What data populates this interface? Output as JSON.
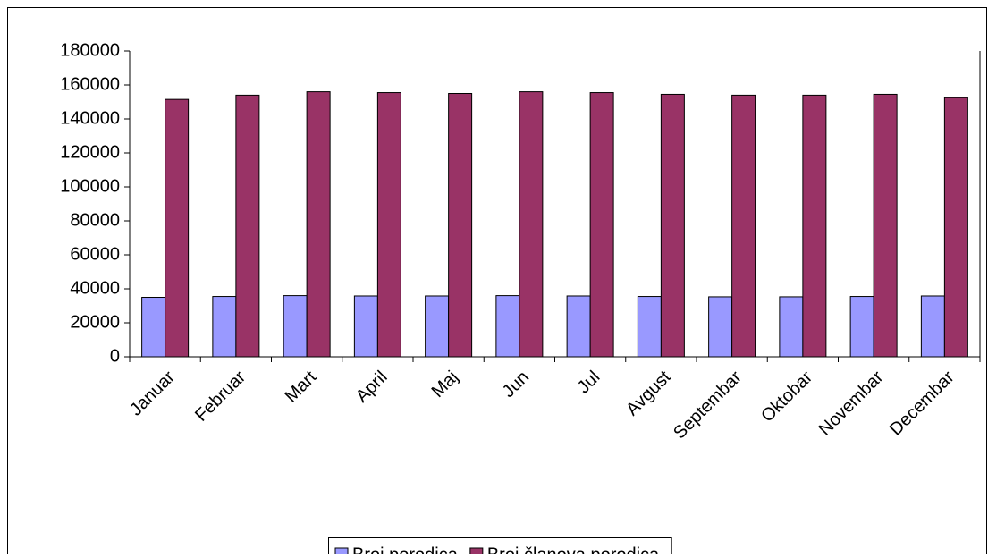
{
  "chart_data": {
    "type": "bar",
    "categories": [
      "Januar",
      "Februar",
      "Mart",
      "April",
      "Maj",
      "Jun",
      "Jul",
      "Avgust",
      "Septembar",
      "Oktobar",
      "Novembar",
      "Decembar"
    ],
    "series": [
      {
        "name": "Broj porodica",
        "color": "#9999ff",
        "values": [
          35000,
          35500,
          36000,
          35800,
          35800,
          36000,
          35800,
          35500,
          35300,
          35300,
          35500,
          35800
        ]
      },
      {
        "name": "Broj članova porodica",
        "color": "#993366",
        "values": [
          151500,
          154000,
          156000,
          155500,
          155000,
          156000,
          155500,
          154500,
          154000,
          154000,
          154500,
          152500
        ]
      }
    ],
    "ylim": [
      0,
      180000
    ],
    "yticks": [
      0,
      20000,
      40000,
      60000,
      80000,
      100000,
      120000,
      140000,
      160000,
      180000
    ],
    "grid": false,
    "legend": "bottom"
  }
}
